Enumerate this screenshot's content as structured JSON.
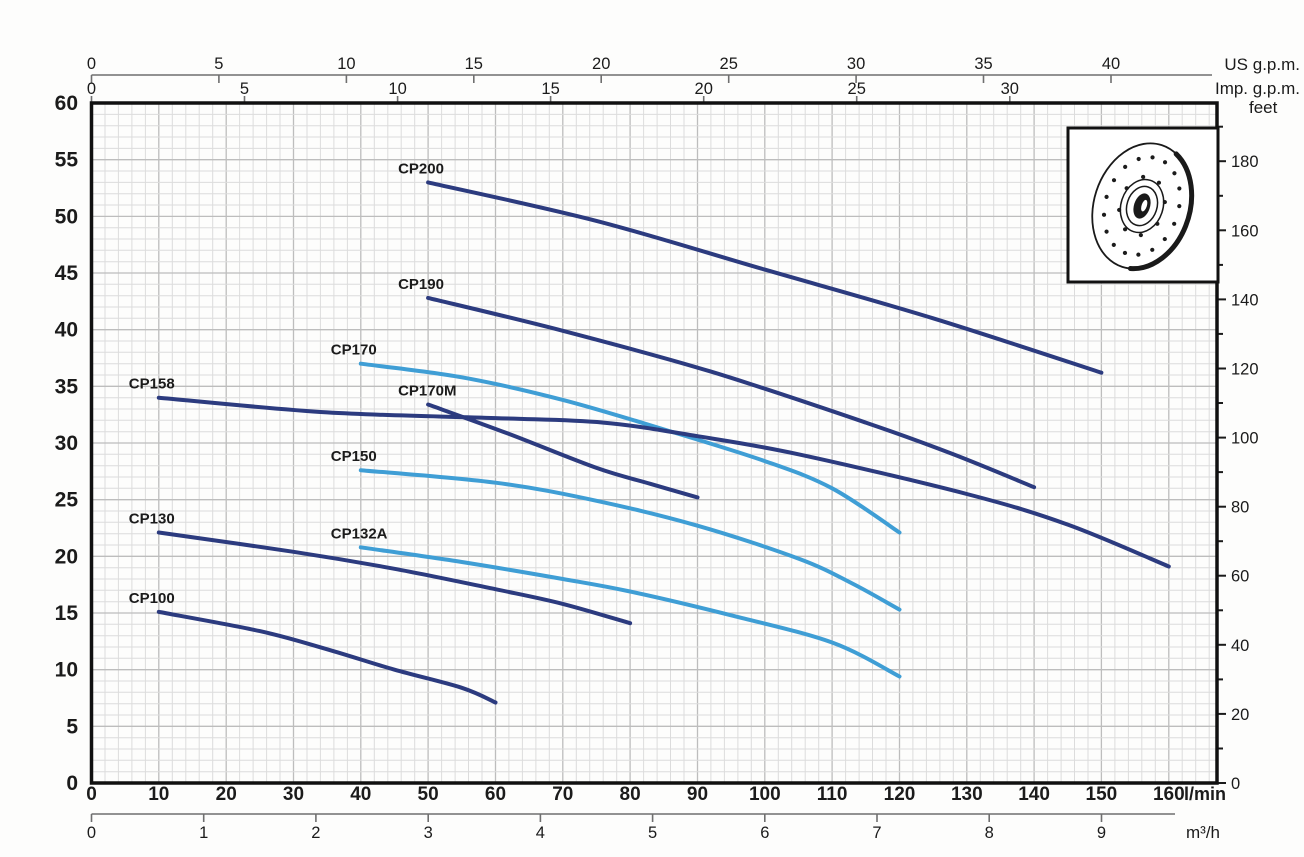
{
  "colors": {
    "navy": "#2c3b7f",
    "light_blue": "#3f9ed5",
    "grid_minor": "#dcdcdc",
    "grid_major": "#bdbdbd",
    "text": "#1b1b1b"
  },
  "chart_data": {
    "type": "line",
    "title": "",
    "xlabel": "l/min",
    "ylabel_right": "feet",
    "grid": true,
    "axes": {
      "us_gpm": {
        "label": "US g.p.m.",
        "ticks": [
          0,
          5,
          10,
          15,
          20,
          25,
          30,
          35,
          40
        ],
        "lmin_per_unit": 3.7854,
        "range": [
          0,
          44
        ]
      },
      "imp_gpm": {
        "label": "Imp. g.p.m.",
        "ticks": [
          0,
          5,
          10,
          15,
          20,
          25,
          30
        ],
        "lmin_per_unit": 4.5461,
        "range": [
          0,
          36
        ]
      },
      "head_m": {
        "label": "",
        "ticks": [
          0,
          5,
          10,
          15,
          20,
          25,
          30,
          35,
          40,
          45,
          50,
          55,
          60
        ],
        "range": [
          0,
          60
        ]
      },
      "feet": {
        "label": "feet",
        "ticks": [
          0,
          20,
          40,
          60,
          80,
          100,
          120,
          140,
          160,
          180
        ],
        "minor_step": 10,
        "m_per_unit": 0.3048,
        "range": [
          0,
          196
        ]
      },
      "lmin": {
        "label": "l/min",
        "ticks": [
          0,
          10,
          20,
          30,
          40,
          50,
          60,
          70,
          80,
          90,
          100,
          110,
          120,
          130,
          140,
          150,
          160
        ],
        "range": [
          0,
          167
        ]
      },
      "m3h": {
        "label": "m³/h",
        "ticks": [
          0,
          1,
          2,
          3,
          4,
          5,
          6,
          7,
          8,
          9
        ],
        "lmin_per_unit": 16.6667,
        "range": [
          0,
          10
        ]
      }
    },
    "series": [
      {
        "name": "CP200",
        "color": "navy",
        "points": [
          [
            50,
            53.0
          ],
          [
            75,
            49.6
          ],
          [
            100,
            45.3
          ],
          [
            125,
            41.0
          ],
          [
            150,
            36.2
          ]
        ]
      },
      {
        "name": "CP190",
        "color": "navy",
        "points": [
          [
            50,
            42.8
          ],
          [
            70,
            39.9
          ],
          [
            92,
            36.3
          ],
          [
            115,
            31.8
          ],
          [
            128,
            29.0
          ],
          [
            140,
            26.1
          ]
        ]
      },
      {
        "name": "CP170",
        "color": "light_blue",
        "points": [
          [
            40,
            37.0
          ],
          [
            55,
            35.8
          ],
          [
            70,
            33.8
          ],
          [
            85,
            31.2
          ],
          [
            100,
            28.4
          ],
          [
            110,
            26.0
          ],
          [
            120,
            22.1
          ]
        ]
      },
      {
        "name": "CP170M",
        "color": "navy",
        "points": [
          [
            50,
            33.4
          ],
          [
            62,
            30.8
          ],
          [
            75,
            27.8
          ],
          [
            83,
            26.4
          ],
          [
            90,
            25.2
          ]
        ]
      },
      {
        "name": "CP158",
        "color": "navy",
        "points": [
          [
            10,
            34.0
          ],
          [
            35,
            32.7
          ],
          [
            60,
            32.2
          ],
          [
            76,
            31.8
          ],
          [
            90,
            30.6
          ],
          [
            105,
            29.0
          ],
          [
            130,
            25.5
          ],
          [
            145,
            22.8
          ],
          [
            160,
            19.1
          ]
        ]
      },
      {
        "name": "CP150",
        "color": "light_blue",
        "points": [
          [
            40,
            27.6
          ],
          [
            60,
            26.5
          ],
          [
            75,
            24.9
          ],
          [
            90,
            22.7
          ],
          [
            105,
            19.8
          ],
          [
            113,
            17.6
          ],
          [
            120,
            15.3
          ]
        ]
      },
      {
        "name": "CP132A",
        "color": "light_blue",
        "points": [
          [
            40,
            20.8
          ],
          [
            55,
            19.5
          ],
          [
            70,
            18.0
          ],
          [
            80,
            16.9
          ],
          [
            95,
            14.8
          ],
          [
            110,
            12.4
          ],
          [
            120,
            9.4
          ]
        ]
      },
      {
        "name": "CP130",
        "color": "navy",
        "points": [
          [
            10,
            22.1
          ],
          [
            30,
            20.4
          ],
          [
            45,
            18.9
          ],
          [
            60,
            17.1
          ],
          [
            70,
            15.8
          ],
          [
            80,
            14.1
          ]
        ]
      },
      {
        "name": "CP100",
        "color": "navy",
        "points": [
          [
            10,
            15.1
          ],
          [
            25,
            13.4
          ],
          [
            35,
            11.8
          ],
          [
            45,
            10.0
          ],
          [
            55,
            8.4
          ],
          [
            60,
            7.1
          ]
        ]
      }
    ]
  },
  "inset": {
    "description": "impeller-line-drawing",
    "outer_holes": 17,
    "inner_holes": 8
  }
}
